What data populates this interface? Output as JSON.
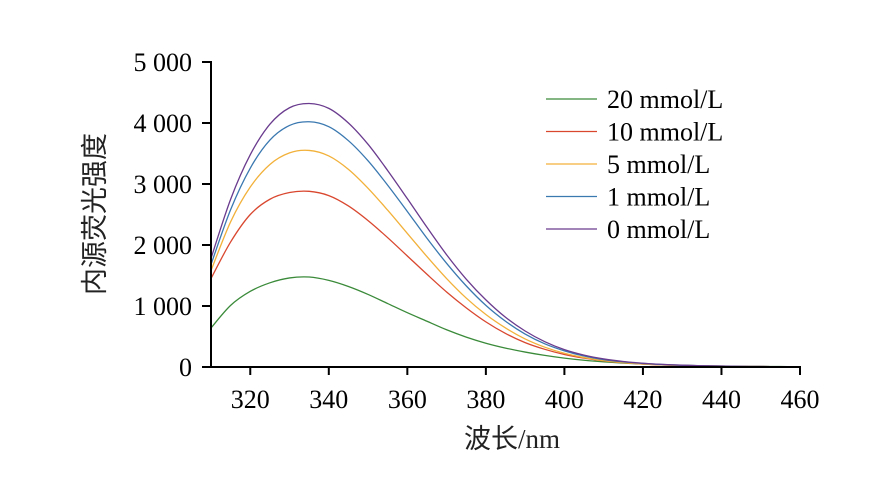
{
  "chart_data": {
    "type": "line",
    "xlabel": "波长/nm",
    "ylabel": "内源荧光强度",
    "xlim": [
      310,
      460
    ],
    "ylim": [
      0,
      5000
    ],
    "x_ticks": [
      320,
      340,
      360,
      380,
      400,
      420,
      440,
      460
    ],
    "x_tick_labels": [
      "320",
      "340",
      "360",
      "380",
      "400",
      "420",
      "440",
      "460"
    ],
    "y_ticks": [
      0,
      1000,
      2000,
      3000,
      4000,
      5000
    ],
    "y_tick_labels": [
      "0",
      "1 000",
      "2 000",
      "3 000",
      "4 000",
      "5 000"
    ],
    "grid": false,
    "legend_position": "top-right",
    "x": [
      310,
      315,
      320,
      325,
      330,
      335,
      340,
      345,
      350,
      355,
      360,
      365,
      370,
      375,
      380,
      385,
      390,
      395,
      400,
      405,
      410,
      415,
      420,
      425,
      430,
      435,
      440,
      445,
      450,
      455,
      460
    ],
    "series": [
      {
        "name": "20 mmol/L",
        "color": "#3a8a3a",
        "values": [
          640,
          1010,
          1240,
          1380,
          1460,
          1475,
          1420,
          1320,
          1190,
          1040,
          890,
          750,
          610,
          490,
          390,
          310,
          245,
          190,
          145,
          110,
          85,
          65,
          50,
          38,
          28,
          21,
          16,
          12,
          9,
          7,
          5
        ]
      },
      {
        "name": "10 mmol/L",
        "color": "#d9472f",
        "values": [
          1450,
          2050,
          2500,
          2750,
          2860,
          2880,
          2810,
          2640,
          2400,
          2120,
          1820,
          1520,
          1230,
          970,
          740,
          550,
          400,
          290,
          205,
          145,
          100,
          70,
          48,
          34,
          24,
          17,
          12,
          9,
          7,
          5,
          4
        ]
      },
      {
        "name": "5 mmol/L",
        "color": "#f2b13a",
        "values": [
          1580,
          2380,
          2950,
          3320,
          3510,
          3550,
          3460,
          3240,
          2930,
          2570,
          2190,
          1810,
          1450,
          1130,
          860,
          640,
          460,
          325,
          225,
          155,
          105,
          72,
          50,
          35,
          25,
          18,
          13,
          9,
          7,
          5,
          4
        ]
      },
      {
        "name": "1 mmol/L",
        "color": "#3a78b0",
        "values": [
          1680,
          2580,
          3260,
          3720,
          3960,
          4020,
          3940,
          3710,
          3380,
          2980,
          2550,
          2110,
          1700,
          1330,
          1010,
          750,
          540,
          380,
          265,
          180,
          122,
          84,
          58,
          40,
          28,
          20,
          14,
          10,
          7,
          5,
          4
        ]
      },
      {
        "name": "0 mmol/L",
        "color": "#6a3b8e",
        "values": [
          1780,
          2750,
          3480,
          3980,
          4250,
          4320,
          4240,
          4000,
          3650,
          3220,
          2760,
          2290,
          1840,
          1440,
          1100,
          815,
          590,
          415,
          285,
          195,
          132,
          90,
          62,
          43,
          30,
          21,
          15,
          10,
          7,
          5,
          4
        ]
      }
    ]
  }
}
